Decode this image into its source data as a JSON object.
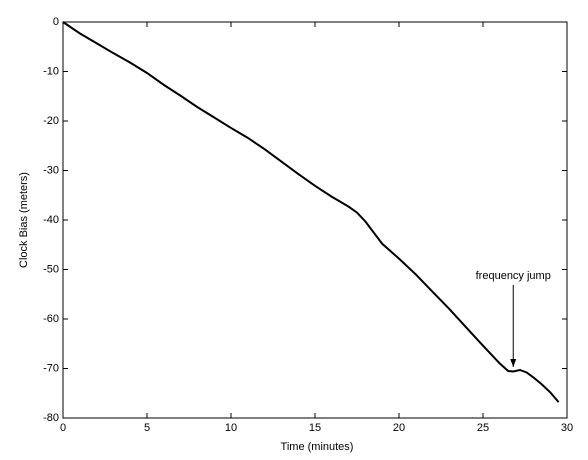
{
  "chart_data": {
    "type": "line",
    "xlabel": "Time (minutes)",
    "ylabel": "Clock Bias (meters)",
    "x": [
      0,
      1,
      2,
      3,
      4,
      5,
      6,
      7,
      8,
      9,
      10,
      11,
      12,
      13,
      14,
      15,
      16,
      17,
      17.5,
      18,
      19,
      20,
      21,
      22,
      23,
      24,
      25,
      26,
      26.5,
      26.8,
      27.2,
      27.6,
      28,
      28.5,
      29,
      29.5
    ],
    "series": [
      {
        "color": "#000000",
        "values": [
          0,
          -2.3,
          -4.3,
          -6.3,
          -8.2,
          -10.3,
          -12.7,
          -14.9,
          -17.2,
          -19.3,
          -21.4,
          -23.4,
          -25.7,
          -28.2,
          -30.7,
          -33.1,
          -35.3,
          -37.3,
          -38.5,
          -40.3,
          -44.8,
          -47.8,
          -51.0,
          -54.5,
          -58.0,
          -61.7,
          -65.4,
          -69.0,
          -70.5,
          -70.6,
          -70.3,
          -70.8,
          -71.8,
          -73.2,
          -74.8,
          -76.8
        ]
      }
    ],
    "annotation": {
      "text": "frequency jump",
      "x": 26.8,
      "y": -70.5
    },
    "xlim": [
      0,
      30
    ],
    "xticks": [
      0,
      5,
      10,
      15,
      20,
      25,
      30
    ],
    "ylim": [
      -80,
      0
    ],
    "yticks": [
      0,
      -10,
      -20,
      -30,
      -40,
      -50,
      -60,
      -70,
      -80
    ],
    "grid": false
  }
}
